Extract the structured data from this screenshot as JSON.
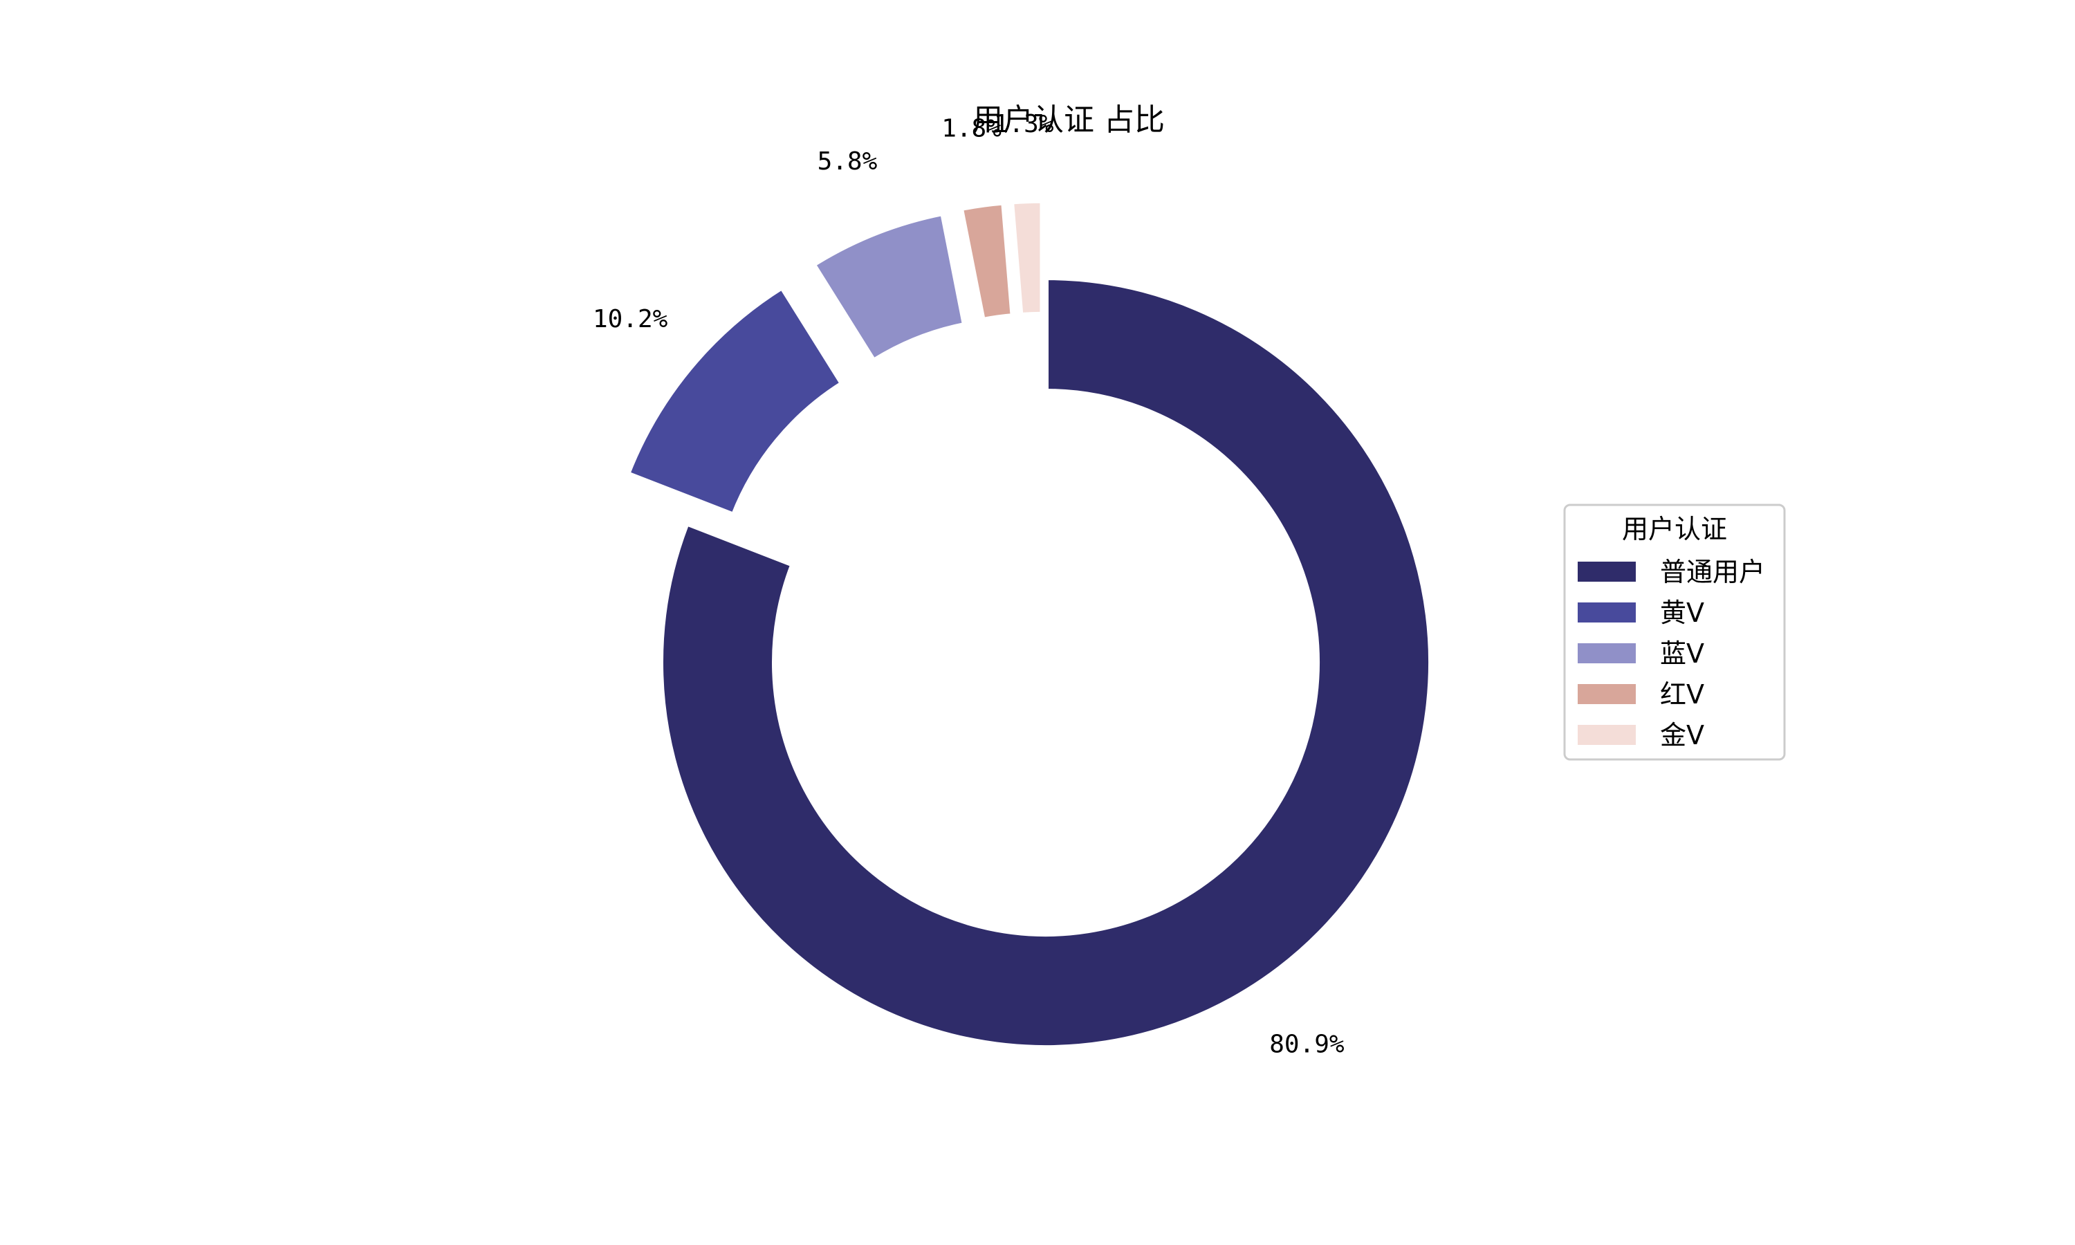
{
  "chart_data": {
    "type": "pie",
    "variant": "donut",
    "title": "用户认证 占比",
    "legend": {
      "title": "用户认证",
      "placement": "right"
    },
    "slices": [
      {
        "label": "普通用户",
        "value": 80.9,
        "pct_label": "80.9%",
        "color": "#2f2c6a"
      },
      {
        "label": "黄V",
        "value": 10.2,
        "pct_label": "10.2%",
        "color": "#484a9c"
      },
      {
        "label": "蓝V",
        "value": 5.8,
        "pct_label": "5.8%",
        "color": "#9090c8"
      },
      {
        "label": "红V",
        "value": 1.8,
        "pct_label": "1.8%",
        "color": "#d8a69a"
      },
      {
        "label": "金V",
        "value": 1.3,
        "pct_label": "1.3%",
        "color": "#f4ddd8"
      }
    ]
  }
}
